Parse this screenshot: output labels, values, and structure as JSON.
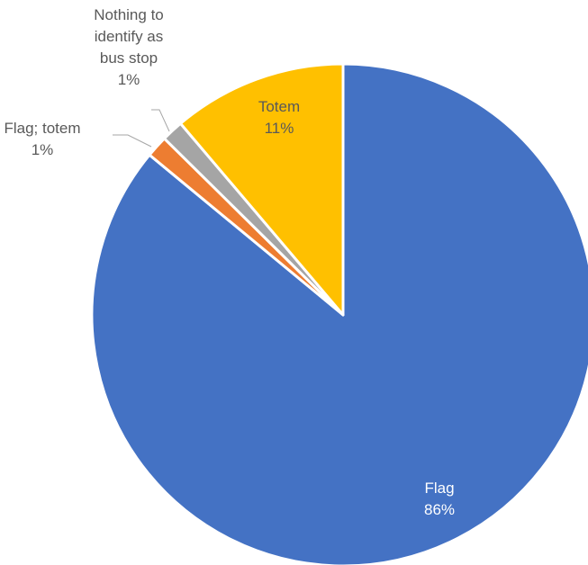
{
  "chart_data": {
    "type": "pie",
    "title": "",
    "slices": [
      {
        "name": "Flag",
        "value": 86,
        "percent_label": "86%",
        "color": "#4472c4",
        "label_color": "#ffffff"
      },
      {
        "name": "Flag; totem",
        "value": 1.4,
        "percent_label": "1%",
        "color": "#ed7d31",
        "label_color": "#595959"
      },
      {
        "name": "Nothing to identify as bus stop",
        "value": 1.4,
        "percent_label": "1%",
        "color": "#a5a5a5",
        "label_color": "#595959"
      },
      {
        "name": "Totem",
        "value": 11.2,
        "percent_label": "11%",
        "color": "#ffc000",
        "label_color": "#595959"
      }
    ],
    "start": "12 o'clock",
    "direction": "clockwise",
    "legend": "none",
    "data_labels": "category name and percentage"
  }
}
